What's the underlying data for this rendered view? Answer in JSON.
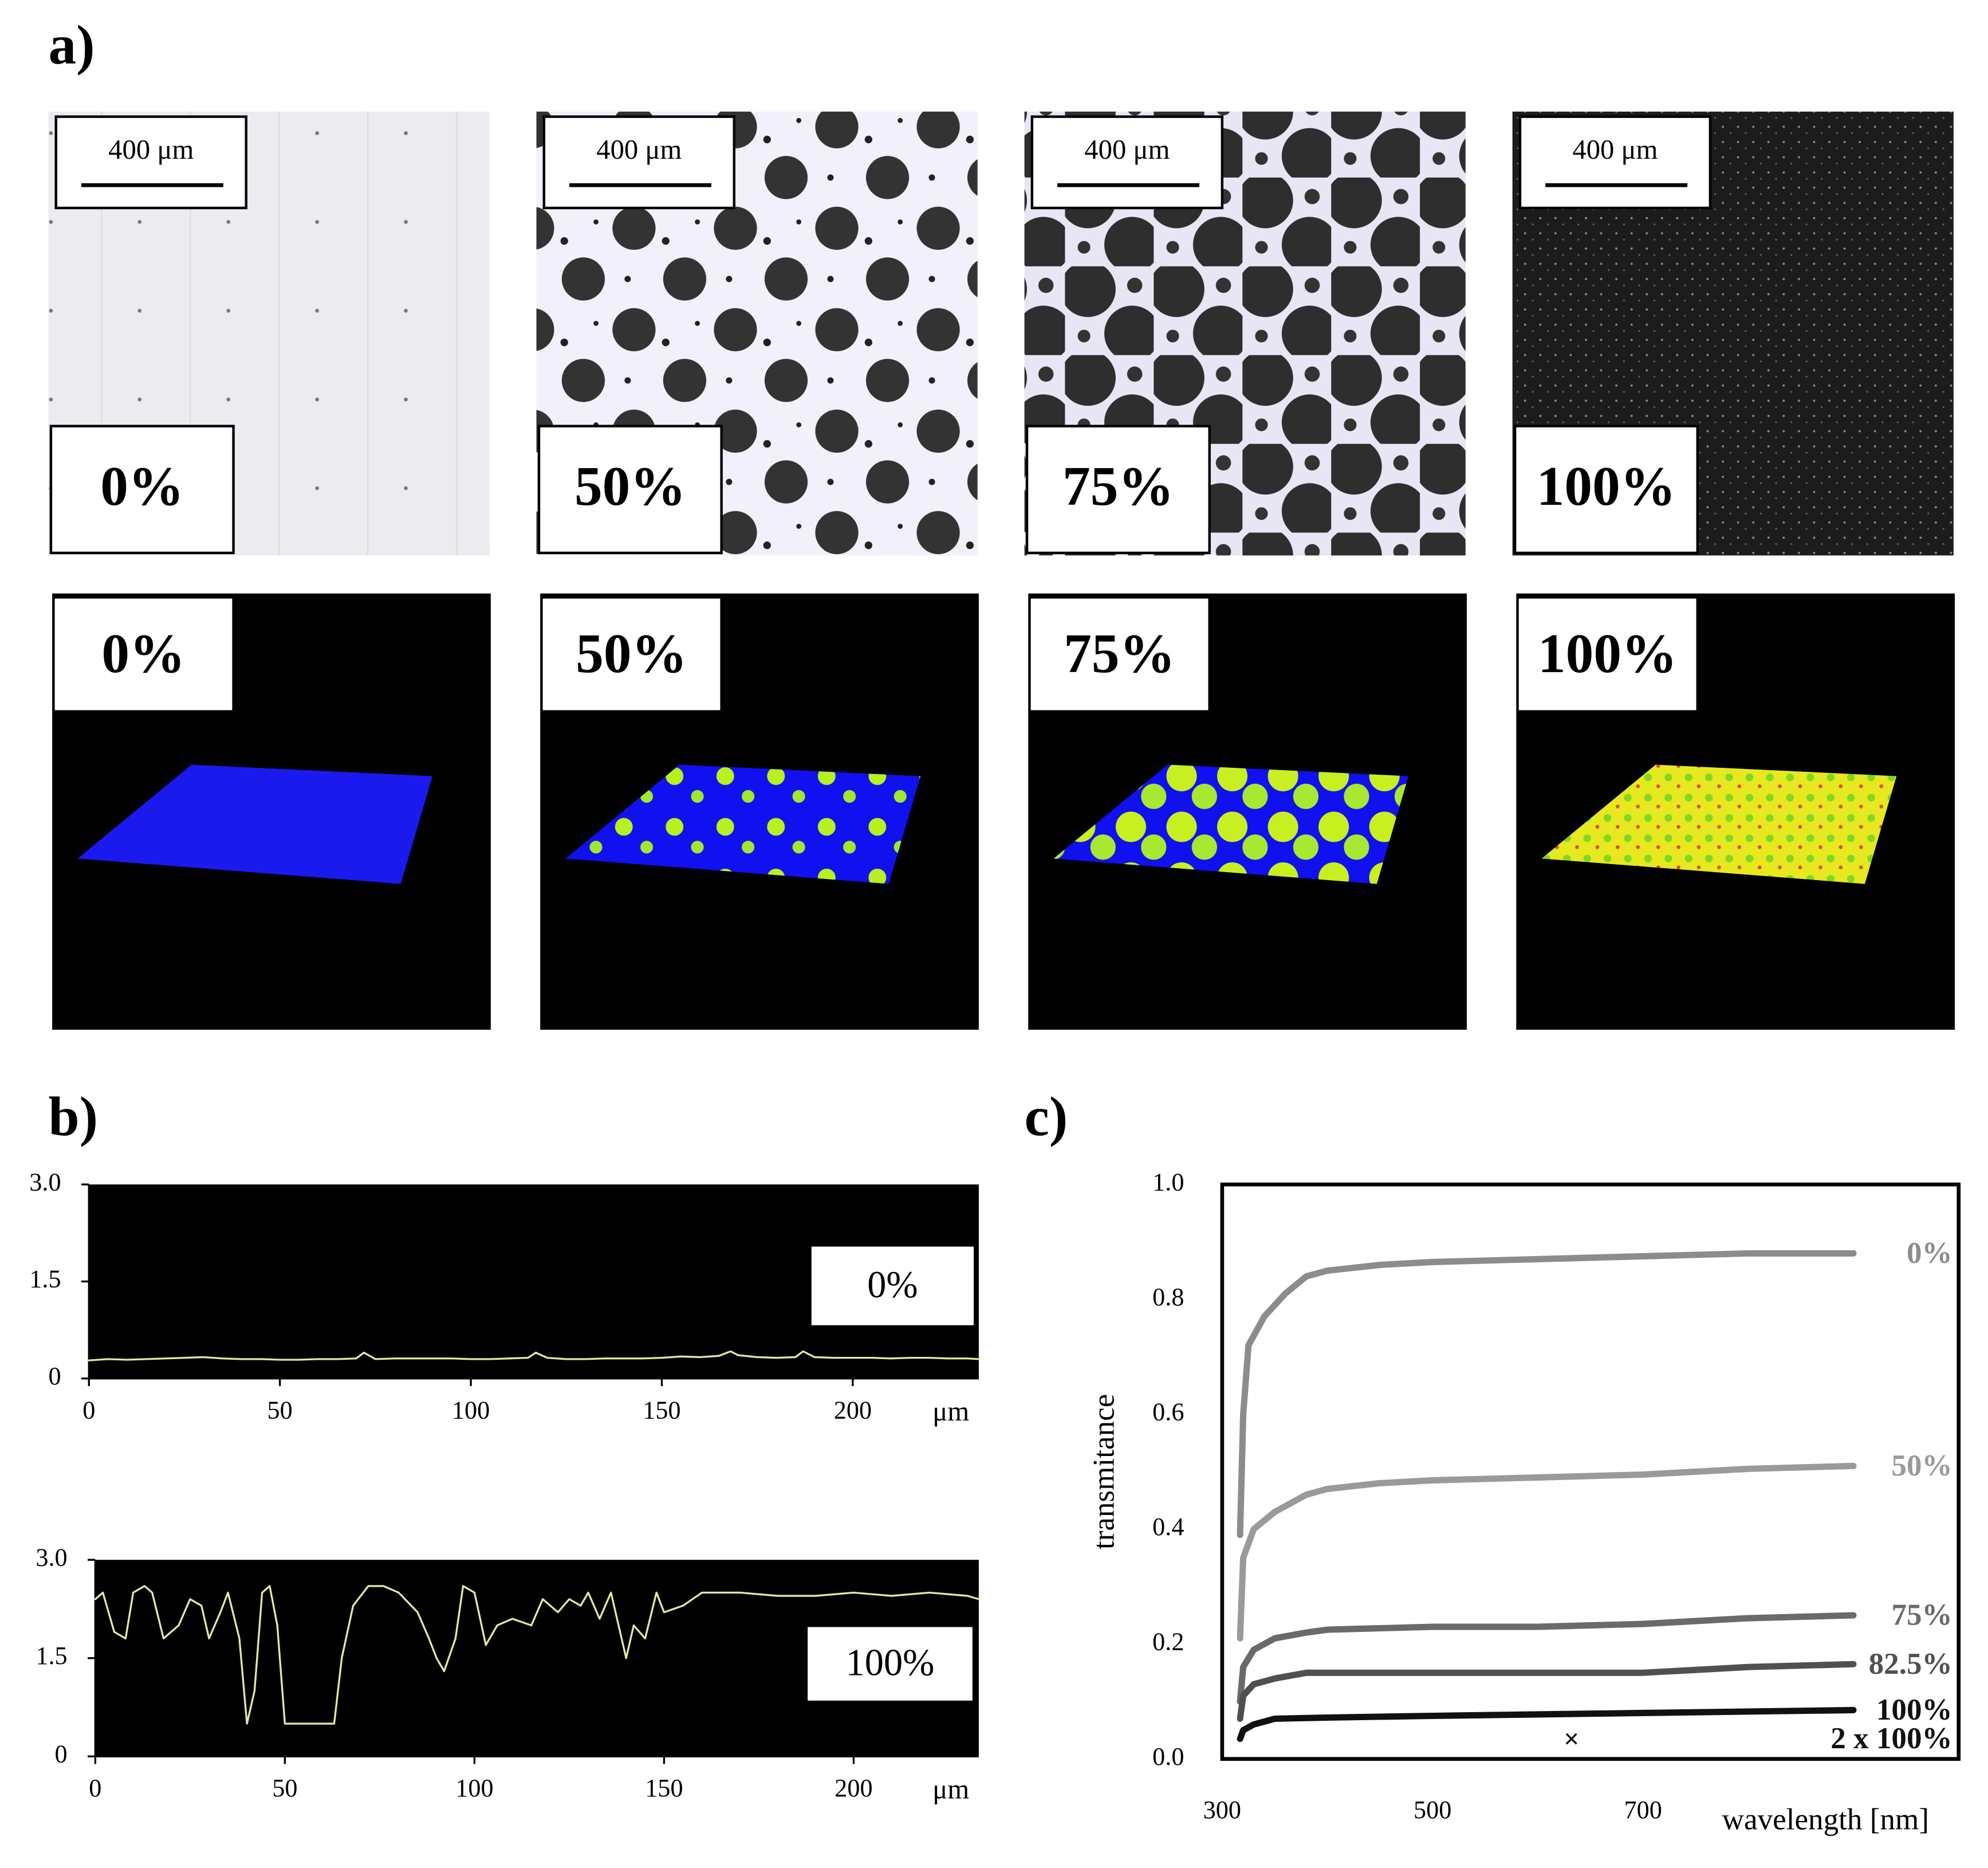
{
  "panel_labels": [
    "a)",
    "b)",
    "c)"
  ],
  "panel_a": {
    "micrographs": [
      {
        "label": "0%",
        "scale_bar": "400 μm"
      },
      {
        "label": "50%",
        "scale_bar": "400 μm"
      },
      {
        "label": "75%",
        "scale_bar": "400 μm"
      },
      {
        "label": "100%",
        "scale_bar": "400 μm"
      }
    ],
    "height_maps": [
      {
        "label": "0%"
      },
      {
        "label": "50%"
      },
      {
        "label": "75%"
      },
      {
        "label": "100%"
      }
    ]
  },
  "chart_data": [
    {
      "type": "line",
      "background": "#000000",
      "annotation": "0%",
      "x": [
        0,
        5,
        10,
        15,
        20,
        25,
        30,
        35,
        40,
        45,
        50,
        55,
        60,
        65,
        70,
        72,
        75,
        80,
        85,
        90,
        95,
        100,
        105,
        110,
        115,
        117,
        120,
        125,
        130,
        135,
        140,
        145,
        150,
        155,
        160,
        165,
        168,
        170,
        175,
        180,
        185,
        187,
        190,
        195,
        200,
        205,
        210,
        215,
        220,
        225,
        230,
        233
      ],
      "xlim": [
        0,
        233
      ],
      "xticks": [
        0,
        50,
        100,
        150,
        200
      ],
      "x_label": "μm",
      "ylim": [
        0,
        3
      ],
      "yticks": [
        0,
        1.5,
        {
          "value": 3,
          "label": "3.0"
        }
      ],
      "series": [
        {
          "color": "#e6e6a0",
          "values": [
            0.28,
            0.3,
            0.29,
            0.3,
            0.31,
            0.32,
            0.33,
            0.31,
            0.3,
            0.3,
            0.29,
            0.29,
            0.3,
            0.3,
            0.31,
            0.4,
            0.3,
            0.31,
            0.31,
            0.31,
            0.31,
            0.3,
            0.3,
            0.31,
            0.32,
            0.4,
            0.32,
            0.3,
            0.3,
            0.31,
            0.31,
            0.31,
            0.32,
            0.34,
            0.33,
            0.35,
            0.42,
            0.36,
            0.33,
            0.32,
            0.33,
            0.42,
            0.33,
            0.32,
            0.32,
            0.32,
            0.31,
            0.32,
            0.32,
            0.31,
            0.31,
            0.3
          ]
        }
      ]
    },
    {
      "type": "line",
      "background": "#000000",
      "annotation": "100%",
      "x": [
        0,
        2,
        5,
        8,
        10,
        13,
        15,
        18,
        22,
        25,
        28,
        30,
        33,
        35,
        38,
        40,
        42,
        44,
        46,
        48,
        50,
        55,
        60,
        63,
        65,
        68,
        72,
        76,
        80,
        85,
        88,
        90,
        92,
        95,
        97,
        100,
        103,
        106,
        110,
        115,
        118,
        122,
        125,
        128,
        130,
        133,
        136,
        140,
        142,
        145,
        148,
        150,
        155,
        160,
        170,
        180,
        190,
        200,
        210,
        220,
        230,
        233
      ],
      "xlim": [
        0,
        233
      ],
      "xticks": [
        0,
        50,
        100,
        150,
        200
      ],
      "x_label": "μm",
      "ylim": [
        0,
        3
      ],
      "yticks": [
        0,
        1.5,
        {
          "value": 3,
          "label": "3.0"
        }
      ],
      "series": [
        {
          "color": "#e6e6a0",
          "values": [
            2.4,
            2.5,
            1.9,
            1.8,
            2.5,
            2.6,
            2.5,
            1.8,
            2.0,
            2.4,
            2.3,
            1.8,
            2.2,
            2.5,
            1.8,
            0.5,
            1.0,
            2.5,
            2.6,
            2.0,
            0.5,
            0.5,
            0.5,
            0.5,
            1.5,
            2.3,
            2.6,
            2.6,
            2.5,
            2.2,
            1.8,
            1.5,
            1.3,
            1.8,
            2.6,
            2.5,
            1.7,
            2.0,
            2.1,
            2.0,
            2.4,
            2.2,
            2.4,
            2.3,
            2.5,
            2.1,
            2.5,
            1.5,
            2.0,
            1.8,
            2.5,
            2.2,
            2.3,
            2.5,
            2.5,
            2.45,
            2.45,
            2.5,
            2.45,
            2.5,
            2.45,
            2.4
          ]
        }
      ]
    },
    {
      "type": "line",
      "x_label": "wavelength [nm]",
      "y_label": "transmitance",
      "xlim": [
        300,
        1000
      ],
      "xticks": [
        300,
        500,
        700
      ],
      "ylim": [
        0,
        1
      ],
      "yticks": [
        {
          "value": 0,
          "label": "0.0"
        },
        0.2,
        0.4,
        0.6,
        0.8,
        {
          "value": 1,
          "label": "1.0"
        }
      ],
      "series": [
        {
          "name": "0%",
          "color": "#8c8c8c",
          "x": [
            317,
            320,
            325,
            340,
            360,
            380,
            400,
            450,
            500,
            600,
            700,
            800,
            900
          ],
          "values": [
            0.39,
            0.6,
            0.72,
            0.77,
            0.81,
            0.84,
            0.85,
            0.86,
            0.865,
            0.87,
            0.875,
            0.88,
            0.88
          ]
        },
        {
          "name": "50%",
          "color": "#9a9a9a",
          "x": [
            317,
            320,
            330,
            350,
            380,
            400,
            450,
            500,
            600,
            700,
            800,
            900
          ],
          "values": [
            0.21,
            0.35,
            0.4,
            0.43,
            0.46,
            0.47,
            0.48,
            0.485,
            0.49,
            0.495,
            0.505,
            0.51
          ]
        },
        {
          "name": "75%",
          "color": "#6a6a6a",
          "x": [
            317,
            320,
            330,
            350,
            380,
            400,
            500,
            600,
            700,
            800,
            900
          ],
          "values": [
            0.1,
            0.16,
            0.19,
            0.21,
            0.22,
            0.225,
            0.23,
            0.23,
            0.235,
            0.245,
            0.25
          ]
        },
        {
          "name": "82.5%",
          "color": "#505050",
          "x": [
            317,
            320,
            330,
            350,
            380,
            500,
            600,
            700,
            800,
            900
          ],
          "values": [
            0.07,
            0.11,
            0.13,
            0.14,
            0.15,
            0.15,
            0.15,
            0.15,
            0.16,
            0.165
          ]
        },
        {
          "name": "100%",
          "color": "#111111",
          "x": [
            317,
            320,
            330,
            350,
            400,
            500,
            700,
            900
          ],
          "values": [
            0.035,
            0.05,
            0.06,
            0.07,
            0.072,
            0.075,
            0.08,
            0.085
          ]
        },
        {
          "name": "2 x 100%",
          "color": "#111111",
          "marker": "x",
          "x": [
            632
          ],
          "values": [
            0.035
          ]
        }
      ]
    }
  ]
}
